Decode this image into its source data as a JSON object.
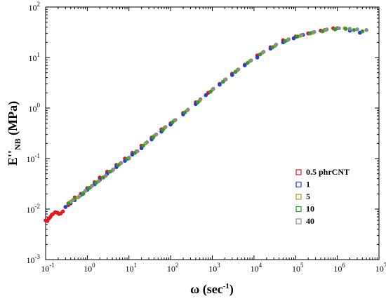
{
  "chart_data": {
    "type": "scatter",
    "title": "",
    "xlabel": {
      "main": "ω (sec",
      "sup": "-1",
      "end": ")"
    },
    "ylabel": {
      "main": "E''",
      "sub": "NB",
      "end": " (MPa)"
    },
    "xscale": "log",
    "yscale": "log",
    "xlim": [
      0.1,
      10000000
    ],
    "ylim": [
      0.001,
      100
    ],
    "x_ticks": [
      {
        "value": 0.1,
        "base": "10",
        "exp": "-1"
      },
      {
        "value": 1,
        "base": "10",
        "exp": "0"
      },
      {
        "value": 10,
        "base": "10",
        "exp": "1"
      },
      {
        "value": 100,
        "base": "10",
        "exp": "2"
      },
      {
        "value": 1000,
        "base": "10",
        "exp": "3"
      },
      {
        "value": 10000,
        "base": "10",
        "exp": "4"
      },
      {
        "value": 100000,
        "base": "10",
        "exp": "5"
      },
      {
        "value": 1000000,
        "base": "10",
        "exp": "6"
      },
      {
        "value": 10000000,
        "base": "10",
        "exp": "7"
      }
    ],
    "y_ticks": [
      {
        "value": 0.001,
        "base": "10",
        "exp": "-3"
      },
      {
        "value": 0.01,
        "base": "10",
        "exp": "-2"
      },
      {
        "value": 0.1,
        "base": "10",
        "exp": "-1"
      },
      {
        "value": 1,
        "base": "10",
        "exp": "0"
      },
      {
        "value": 10,
        "base": "10",
        "exp": "1"
      },
      {
        "value": 100,
        "base": "10",
        "exp": "2"
      }
    ],
    "grid": false,
    "legend_position": "lower-right",
    "series": [
      {
        "name": "0.5 phrCNT",
        "color": "#e3161d",
        "points": [
          [
            0.1,
            0.006
          ],
          [
            0.11,
            0.0058
          ],
          [
            0.12,
            0.0065
          ],
          [
            0.13,
            0.007
          ],
          [
            0.14,
            0.0077
          ],
          [
            0.15,
            0.008
          ],
          [
            0.17,
            0.0087
          ],
          [
            0.19,
            0.0085
          ],
          [
            0.21,
            0.008
          ],
          [
            0.23,
            0.0082
          ],
          [
            0.26,
            0.009
          ],
          [
            0.3,
            0.011
          ],
          [
            0.35,
            0.012
          ],
          [
            0.4,
            0.014
          ],
          [
            0.5,
            0.017
          ],
          [
            0.7,
            0.02
          ],
          [
            1,
            0.026
          ],
          [
            1.5,
            0.034
          ],
          [
            2,
            0.042
          ],
          [
            3,
            0.055
          ],
          [
            5,
            0.075
          ],
          [
            8,
            0.1
          ],
          [
            12,
            0.13
          ],
          [
            20,
            0.18
          ],
          [
            35,
            0.26
          ],
          [
            60,
            0.38
          ],
          [
            100,
            0.5
          ],
          [
            200,
            0.8
          ],
          [
            400,
            1.3
          ],
          [
            800,
            2
          ],
          [
            1500,
            3
          ],
          [
            3000,
            4.8
          ],
          [
            6000,
            7.2
          ],
          [
            12000,
            11
          ],
          [
            25000,
            16
          ],
          [
            50000,
            22
          ],
          [
            100000,
            26
          ],
          [
            200000,
            30
          ],
          [
            400000,
            34
          ],
          [
            800000,
            38
          ]
        ]
      },
      {
        "name": "1",
        "color": "#1f3fd6",
        "points": [
          [
            0.3,
            0.011
          ],
          [
            0.4,
            0.013
          ],
          [
            0.5,
            0.015
          ],
          [
            0.7,
            0.019
          ],
          [
            1,
            0.024
          ],
          [
            1.5,
            0.031
          ],
          [
            2,
            0.038
          ],
          [
            3,
            0.05
          ],
          [
            5,
            0.068
          ],
          [
            8,
            0.09
          ],
          [
            12,
            0.12
          ],
          [
            20,
            0.16
          ],
          [
            35,
            0.24
          ],
          [
            60,
            0.34
          ],
          [
            100,
            0.47
          ],
          [
            200,
            0.75
          ],
          [
            400,
            1.2
          ],
          [
            700,
            1.8
          ],
          [
            1500,
            2.9
          ],
          [
            3000,
            4.5
          ],
          [
            6000,
            7
          ],
          [
            12000,
            10
          ],
          [
            25000,
            15
          ],
          [
            50000,
            20
          ],
          [
            90000,
            24
          ],
          [
            150000,
            28
          ],
          [
            250000,
            31
          ],
          [
            500000,
            35
          ],
          [
            1000000,
            38
          ],
          [
            2000000,
            34
          ],
          [
            3500000,
            31
          ]
        ]
      },
      {
        "name": "5",
        "color": "#a3a51d",
        "points": [
          [
            0.4,
            0.014
          ],
          [
            0.6,
            0.017
          ],
          [
            0.8,
            0.021
          ],
          [
            1.2,
            0.027
          ],
          [
            1.8,
            0.035
          ],
          [
            2.5,
            0.043
          ],
          [
            4,
            0.058
          ],
          [
            6,
            0.078
          ],
          [
            10,
            0.1
          ],
          [
            15,
            0.14
          ],
          [
            25,
            0.2
          ],
          [
            40,
            0.28
          ],
          [
            70,
            0.4
          ],
          [
            120,
            0.56
          ],
          [
            250,
            0.9
          ],
          [
            500,
            1.4
          ],
          [
            1000,
            2.3
          ],
          [
            2000,
            3.6
          ],
          [
            4000,
            5.6
          ],
          [
            8000,
            8.5
          ],
          [
            16000,
            12.5
          ],
          [
            32000,
            17
          ],
          [
            64000,
            22
          ],
          [
            130000,
            27
          ],
          [
            260000,
            31
          ],
          [
            520000,
            35
          ],
          [
            900000,
            37
          ],
          [
            1500000,
            38
          ]
        ]
      },
      {
        "name": "10",
        "color": "#2e9a2e",
        "points": [
          [
            0.35,
            0.013
          ],
          [
            0.5,
            0.016
          ],
          [
            0.8,
            0.02
          ],
          [
            1.1,
            0.026
          ],
          [
            1.6,
            0.033
          ],
          [
            2.4,
            0.042
          ],
          [
            3.5,
            0.055
          ],
          [
            5.5,
            0.074
          ],
          [
            9,
            0.098
          ],
          [
            14,
            0.13
          ],
          [
            22,
            0.18
          ],
          [
            38,
            0.26
          ],
          [
            65,
            0.37
          ],
          [
            110,
            0.52
          ],
          [
            220,
            0.82
          ],
          [
            450,
            1.3
          ],
          [
            900,
            2.1
          ],
          [
            1800,
            3.3
          ],
          [
            3600,
            5.2
          ],
          [
            7000,
            7.8
          ],
          [
            14000,
            11.5
          ],
          [
            28000,
            16
          ],
          [
            56000,
            21
          ],
          [
            110000,
            26
          ],
          [
            220000,
            30
          ],
          [
            440000,
            33
          ],
          [
            880000,
            36
          ],
          [
            1600000,
            37
          ],
          [
            2500000,
            35
          ],
          [
            4000000,
            33
          ]
        ]
      },
      {
        "name": "40",
        "color": "#8c8c8c",
        "points": [
          [
            0.45,
            0.015
          ],
          [
            0.65,
            0.018
          ],
          [
            0.9,
            0.023
          ],
          [
            1.3,
            0.029
          ],
          [
            1.9,
            0.036
          ],
          [
            2.8,
            0.046
          ],
          [
            4.2,
            0.061
          ],
          [
            6.5,
            0.082
          ],
          [
            10,
            0.105
          ],
          [
            16,
            0.14
          ],
          [
            27,
            0.21
          ],
          [
            45,
            0.3
          ],
          [
            75,
            0.42
          ],
          [
            130,
            0.58
          ],
          [
            260,
            0.93
          ],
          [
            520,
            1.5
          ],
          [
            1050,
            2.4
          ],
          [
            2100,
            3.7
          ],
          [
            4200,
            5.8
          ],
          [
            8500,
            8.8
          ],
          [
            17000,
            13
          ],
          [
            34000,
            18
          ],
          [
            68000,
            23
          ],
          [
            140000,
            28
          ],
          [
            280000,
            32
          ],
          [
            560000,
            36
          ],
          [
            1100000,
            38
          ],
          [
            2000000,
            37
          ],
          [
            3000000,
            36
          ],
          [
            5000000,
            35
          ]
        ]
      }
    ]
  }
}
